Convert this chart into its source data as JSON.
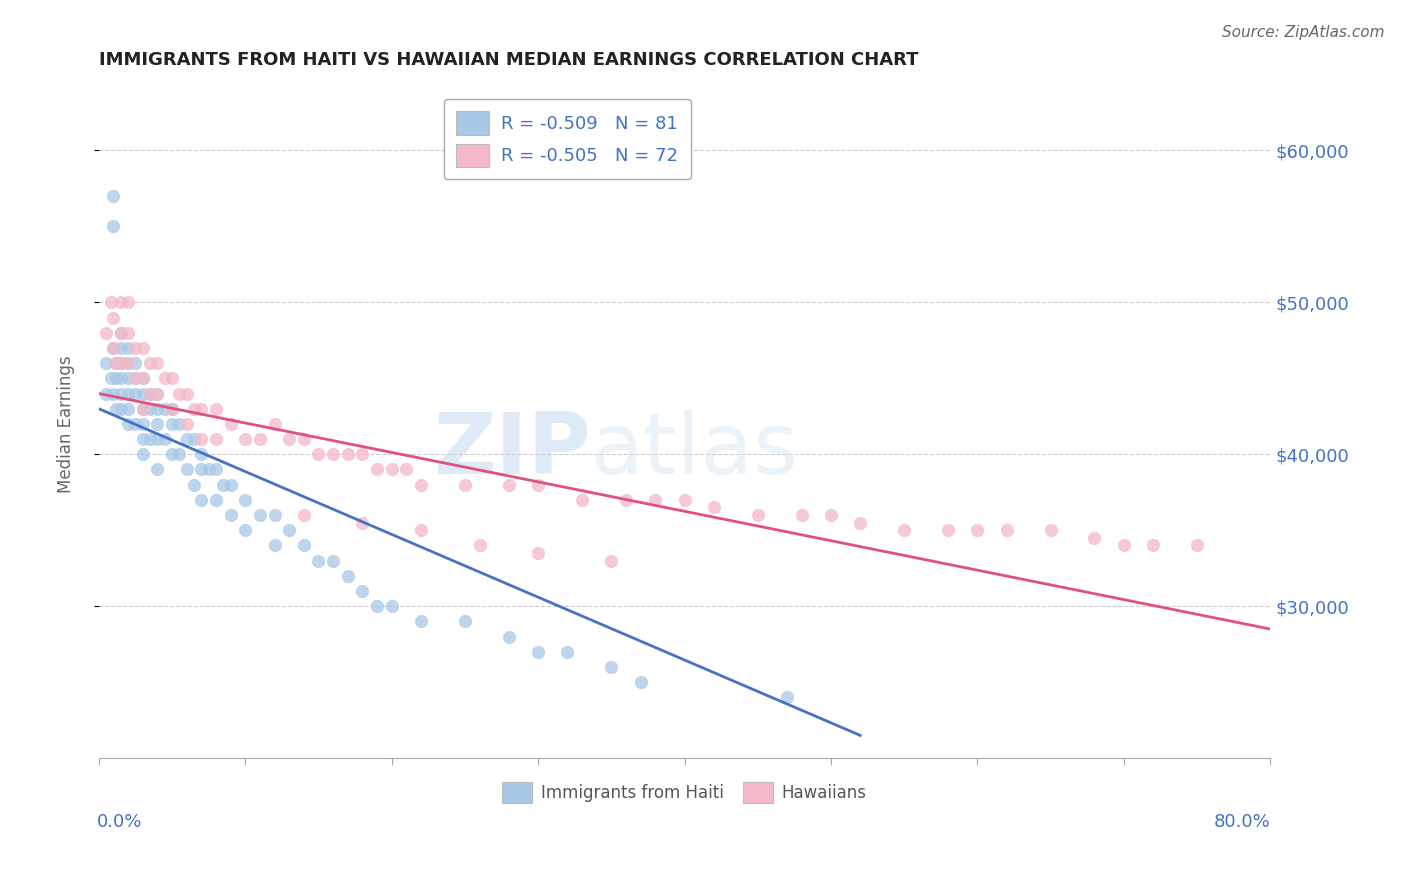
{
  "title": "IMMIGRANTS FROM HAITI VS HAWAIIAN MEDIAN EARNINGS CORRELATION CHART",
  "source": "Source: ZipAtlas.com",
  "ylabel": "Median Earnings",
  "xmin": 0.0,
  "xmax": 0.8,
  "ymin": 20000,
  "ymax": 64000,
  "ytick_vals": [
    30000,
    40000,
    50000,
    60000
  ],
  "ytick_labels": [
    "$30,000",
    "$40,000",
    "$50,000",
    "$60,000"
  ],
  "legend_line1": "R = -0.509   N = 81",
  "legend_line2": "R = -0.505   N = 72",
  "blue_scatter_label": "Immigrants from Haiti",
  "pink_scatter_label": "Hawaiians",
  "blue_color": "#a8c8e8",
  "pink_color": "#f4b8c8",
  "blue_line_color": "#4472c4",
  "pink_line_color": "#e05080",
  "blue_line_x": [
    0.0,
    0.52
  ],
  "blue_line_y": [
    43000,
    21500
  ],
  "pink_line_x": [
    0.0,
    0.8
  ],
  "pink_line_y": [
    44000,
    28500
  ],
  "legend_text_color": "#4472c4",
  "axis_label_color": "#4472c4",
  "ylabel_color": "#666666",
  "grid_color": "#cccccc",
  "background_color": "#ffffff",
  "watermark_zip": "ZIP",
  "watermark_atlas": "atlas",
  "blue_scatter_x": [
    0.005,
    0.005,
    0.008,
    0.01,
    0.01,
    0.01,
    0.01,
    0.012,
    0.012,
    0.012,
    0.015,
    0.015,
    0.015,
    0.015,
    0.015,
    0.015,
    0.02,
    0.02,
    0.02,
    0.02,
    0.02,
    0.02,
    0.025,
    0.025,
    0.025,
    0.025,
    0.03,
    0.03,
    0.03,
    0.03,
    0.03,
    0.03,
    0.035,
    0.035,
    0.035,
    0.04,
    0.04,
    0.04,
    0.04,
    0.04,
    0.045,
    0.045,
    0.05,
    0.05,
    0.05,
    0.055,
    0.055,
    0.06,
    0.06,
    0.065,
    0.065,
    0.07,
    0.07,
    0.07,
    0.075,
    0.08,
    0.08,
    0.085,
    0.09,
    0.09,
    0.1,
    0.1,
    0.11,
    0.12,
    0.12,
    0.13,
    0.14,
    0.15,
    0.16,
    0.17,
    0.18,
    0.19,
    0.2,
    0.22,
    0.25,
    0.28,
    0.3,
    0.32,
    0.35,
    0.37,
    0.47
  ],
  "blue_scatter_y": [
    44000,
    46000,
    45000,
    57000,
    55000,
    47000,
    44000,
    46000,
    45000,
    43000,
    48000,
    47000,
    46000,
    45000,
    44000,
    43000,
    47000,
    46000,
    45000,
    44000,
    43000,
    42000,
    46000,
    45000,
    44000,
    42000,
    45000,
    44000,
    43000,
    42000,
    41000,
    40000,
    44000,
    43000,
    41000,
    44000,
    43000,
    42000,
    41000,
    39000,
    43000,
    41000,
    43000,
    42000,
    40000,
    42000,
    40000,
    41000,
    39000,
    41000,
    38000,
    40000,
    39000,
    37000,
    39000,
    39000,
    37000,
    38000,
    38000,
    36000,
    37000,
    35000,
    36000,
    36000,
    34000,
    35000,
    34000,
    33000,
    33000,
    32000,
    31000,
    30000,
    30000,
    29000,
    29000,
    28000,
    27000,
    27000,
    26000,
    25000,
    24000
  ],
  "pink_scatter_x": [
    0.005,
    0.008,
    0.01,
    0.01,
    0.012,
    0.015,
    0.015,
    0.015,
    0.02,
    0.02,
    0.02,
    0.025,
    0.025,
    0.03,
    0.03,
    0.03,
    0.035,
    0.035,
    0.04,
    0.04,
    0.045,
    0.05,
    0.05,
    0.055,
    0.06,
    0.06,
    0.065,
    0.07,
    0.07,
    0.08,
    0.08,
    0.09,
    0.1,
    0.11,
    0.12,
    0.13,
    0.14,
    0.15,
    0.16,
    0.17,
    0.18,
    0.19,
    0.2,
    0.21,
    0.22,
    0.25,
    0.28,
    0.3,
    0.33,
    0.36,
    0.38,
    0.4,
    0.42,
    0.45,
    0.48,
    0.5,
    0.52,
    0.55,
    0.58,
    0.6,
    0.62,
    0.65,
    0.68,
    0.7,
    0.72,
    0.75,
    0.14,
    0.18,
    0.22,
    0.26,
    0.3,
    0.35
  ],
  "pink_scatter_y": [
    48000,
    50000,
    49000,
    47000,
    46000,
    50000,
    48000,
    46000,
    50000,
    48000,
    46000,
    47000,
    45000,
    47000,
    45000,
    43000,
    46000,
    44000,
    46000,
    44000,
    45000,
    45000,
    43000,
    44000,
    44000,
    42000,
    43000,
    43000,
    41000,
    43000,
    41000,
    42000,
    41000,
    41000,
    42000,
    41000,
    41000,
    40000,
    40000,
    40000,
    40000,
    39000,
    39000,
    39000,
    38000,
    38000,
    38000,
    38000,
    37000,
    37000,
    37000,
    37000,
    36500,
    36000,
    36000,
    36000,
    35500,
    35000,
    35000,
    35000,
    35000,
    35000,
    34500,
    34000,
    34000,
    34000,
    36000,
    35500,
    35000,
    34000,
    33500,
    33000
  ]
}
